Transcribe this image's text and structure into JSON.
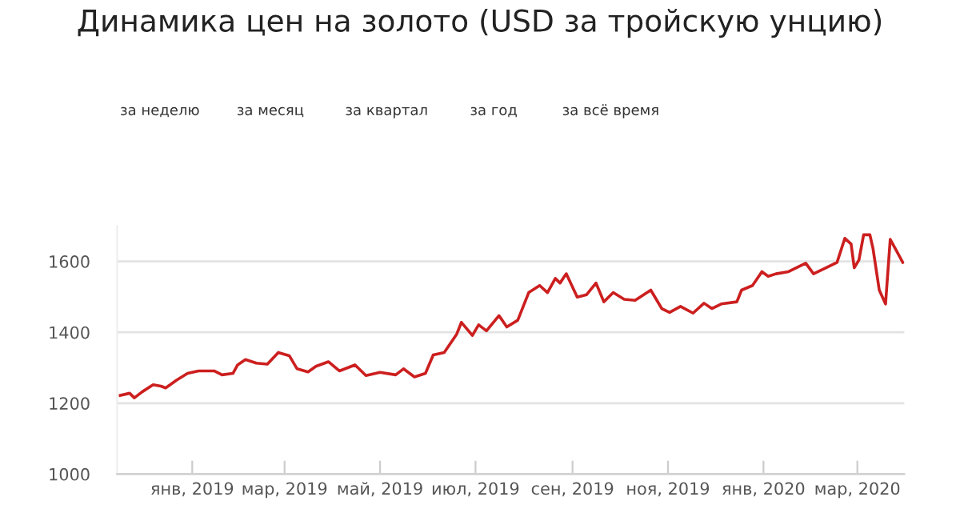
{
  "chart_data": {
    "type": "line",
    "title": "Динамика цен на золото (USD за тройскую унцию)",
    "annotations": [
      "за неделю",
      "за месяц",
      "за квартал",
      "за год",
      "за всё время"
    ],
    "x": [
      "2018-11-16",
      "2018-11-22",
      "2018-11-25",
      "2018-11-30",
      "2018-12-07",
      "2018-12-12",
      "2018-12-15",
      "2018-12-22",
      "2018-12-29",
      "2019-01-05",
      "2019-01-15",
      "2019-01-20",
      "2019-01-27",
      "2019-01-30",
      "2019-02-04",
      "2019-02-11",
      "2019-02-18",
      "2019-02-25",
      "2019-03-04",
      "2019-03-09",
      "2019-03-16",
      "2019-03-21",
      "2019-03-29",
      "2019-04-05",
      "2019-04-15",
      "2019-04-22",
      "2019-05-01",
      "2019-05-11",
      "2019-05-16",
      "2019-05-23",
      "2019-05-30",
      "2019-06-04",
      "2019-06-11",
      "2019-06-19",
      "2019-06-22",
      "2019-06-29",
      "2019-07-03",
      "2019-07-08",
      "2019-07-16",
      "2019-07-21",
      "2019-07-28",
      "2019-08-04",
      "2019-08-11",
      "2019-08-16",
      "2019-08-21",
      "2019-08-24",
      "2019-08-28",
      "2019-09-04",
      "2019-09-10",
      "2019-09-16",
      "2019-09-21",
      "2019-09-27",
      "2019-10-04",
      "2019-10-11",
      "2019-10-21",
      "2019-10-28",
      "2019-11-02",
      "2019-11-09",
      "2019-11-17",
      "2019-11-24",
      "2019-11-29",
      "2019-12-05",
      "2019-12-15",
      "2019-12-18",
      "2019-12-25",
      "2019-12-31",
      "2020-01-04",
      "2020-01-09",
      "2020-01-17",
      "2020-01-28",
      "2020-02-02",
      "2020-02-11",
      "2020-02-17",
      "2020-02-22",
      "2020-02-26",
      "2020-02-28",
      "2020-03-02",
      "2020-03-05",
      "2020-03-09",
      "2020-03-11",
      "2020-03-15",
      "2020-03-19",
      "2020-03-22",
      "2020-03-26",
      "2020-03-30"
    ],
    "series": [
      {
        "color": "#cc1f1f",
        "values": [
          1222,
          1228,
          1215,
          1232,
          1252,
          1248,
          1243,
          1265,
          1284,
          1291,
          1291,
          1280,
          1284,
          1308,
          1323,
          1313,
          1310,
          1343,
          1334,
          1297,
          1288,
          1304,
          1317,
          1291,
          1308,
          1278,
          1287,
          1280,
          1297,
          1274,
          1284,
          1336,
          1343,
          1395,
          1428,
          1391,
          1421,
          1404,
          1447,
          1415,
          1434,
          1512,
          1532,
          1512,
          1552,
          1539,
          1565,
          1499,
          1506,
          1539,
          1486,
          1512,
          1493,
          1490,
          1519,
          1467,
          1456,
          1473,
          1454,
          1482,
          1467,
          1480,
          1486,
          1519,
          1532,
          1571,
          1558,
          1565,
          1571,
          1595,
          1565,
          1584,
          1597,
          1665,
          1649,
          1582,
          1604,
          1675,
          1675,
          1636,
          1519,
          1480,
          1662,
          1630,
          1597
        ]
      }
    ],
    "xlim": [
      "2018-11-14",
      "2020-03-31"
    ],
    "xticks": [
      {
        "value": "2019-01-01",
        "label": "янв, 2019"
      },
      {
        "value": "2019-03-01",
        "label": "мар, 2019"
      },
      {
        "value": "2019-05-01",
        "label": "май, 2019"
      },
      {
        "value": "2019-07-01",
        "label": "июл, 2019"
      },
      {
        "value": "2019-09-01",
        "label": "сен, 2019"
      },
      {
        "value": "2019-11-01",
        "label": "ноя, 2019"
      },
      {
        "value": "2020-01-01",
        "label": "янв, 2020"
      },
      {
        "value": "2020-03-01",
        "label": "мар, 2020"
      }
    ],
    "ylim": [
      1000,
      1700
    ],
    "yticks": [
      1000,
      1200,
      1400,
      1600
    ],
    "grid": "y",
    "line_style": "solid",
    "marker": "none",
    "legend": false
  }
}
